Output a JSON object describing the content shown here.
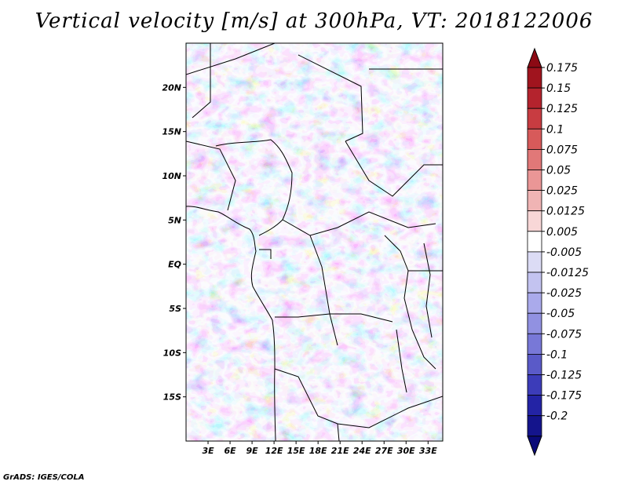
{
  "title": "Vertical velocity [m/s] at 300hPa, VT: 2018122006",
  "credit": "GrADS: IGES/COLA",
  "map": {
    "lon_range": [
      0,
      35
    ],
    "lat_range": [
      -20,
      25
    ],
    "lat_ticks": [
      {
        "value": 20,
        "label": "20N"
      },
      {
        "value": 15,
        "label": "15N"
      },
      {
        "value": 10,
        "label": "10N"
      },
      {
        "value": 5,
        "label": "5N"
      },
      {
        "value": 0,
        "label": "EQ"
      },
      {
        "value": -5,
        "label": "5S"
      },
      {
        "value": -10,
        "label": "10S"
      },
      {
        "value": -15,
        "label": "15S"
      }
    ],
    "lon_ticks": [
      {
        "value": 3,
        "label": "3E"
      },
      {
        "value": 6,
        "label": "6E"
      },
      {
        "value": 9,
        "label": "9E"
      },
      {
        "value": 12,
        "label": "12E"
      },
      {
        "value": 15,
        "label": "15E"
      },
      {
        "value": 18,
        "label": "18E"
      },
      {
        "value": 21,
        "label": "21E"
      },
      {
        "value": 24,
        "label": "24E"
      },
      {
        "value": 27,
        "label": "27E"
      },
      {
        "value": 30,
        "label": "30E"
      },
      {
        "value": 33,
        "label": "33E"
      }
    ]
  },
  "colorbar": {
    "labels": [
      "0.175",
      "0.15",
      "0.125",
      "0.1",
      "0.075",
      "0.05",
      "0.025",
      "0.0125",
      "0.005",
      "-0.005",
      "-0.0125",
      "-0.025",
      "-0.05",
      "-0.075",
      "-0.1",
      "-0.125",
      "-0.175",
      "-0.2"
    ],
    "colors": [
      "#a0141e",
      "#b4232d",
      "#c83c41",
      "#d75a5a",
      "#e17878",
      "#ea9696",
      "#f0b4b4",
      "#f8d7d7",
      "#ffffff",
      "#dcdcf5",
      "#c3c3f0",
      "#aaaaeb",
      "#9191e1",
      "#7878d7",
      "#5a5ac8",
      "#3c3cb9",
      "#2323a5",
      "#14148c"
    ],
    "top_color": "#8c0a14",
    "bottom_color": "#0a0a78"
  }
}
